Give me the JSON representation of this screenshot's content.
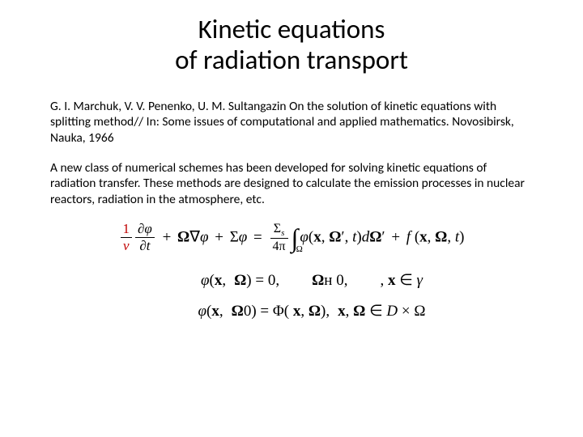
{
  "title_line1": "Kinetic equations",
  "title_line2": "of radiation transport",
  "citation": {
    "authors": "G. I. Marchuk, V. V. Penenko, U. M. Sultangazin",
    "rest": " On the solution of kinetic equations with splitting method//  In: Some issues of computational and applied mathematics. Novosibirsk, Nauka, 1966"
  },
  "description": "A new class of numerical schemes has been developed for solving kinetic equations of radiation transfer. These methods are designed to calculate the emission processes in nuclear reactors, radiation in the atmosphere, etc.",
  "colors": {
    "text": "#000000",
    "accent": "#c00000",
    "background": "#ffffff"
  },
  "typography": {
    "title_fontsize": 33,
    "body_fontsize": 15.5,
    "eq_fontsize": 19,
    "title_family": "Calibri",
    "eq_family": "Cambria Math"
  },
  "equation_main": {
    "term1": {
      "num": "1",
      "den": "v",
      "color": "#c00000"
    },
    "term2": {
      "num": "∂φ",
      "den": "∂t"
    },
    "op1": "+",
    "term3": "Ω∇φ",
    "op2": "+",
    "term4": "Σφ",
    "op3": "=",
    "rhs_frac": {
      "num": "Σ_s",
      "den": "4π"
    },
    "integral_sub": "Ω",
    "integrand": "φ(𝐱, 𝛀′, t) d𝛀′",
    "op4": "+",
    "source": "f (𝐱, 𝛀, t)"
  },
  "conditions": {
    "line1_lhs": "φ(𝐱,",
    "line1_mid": "𝛀) = 0,",
    "line1_rhs1": "𝛀н 0,",
    "line1_rhs2": ", 𝐱 ∈ γ",
    "line2_lhs": "φ(𝐱,",
    "line2_mid": "𝛀0) = Φ( 𝐱, 𝛀),",
    "line2_rhs": "𝐱, 𝛀 ∈ D × Ω"
  }
}
